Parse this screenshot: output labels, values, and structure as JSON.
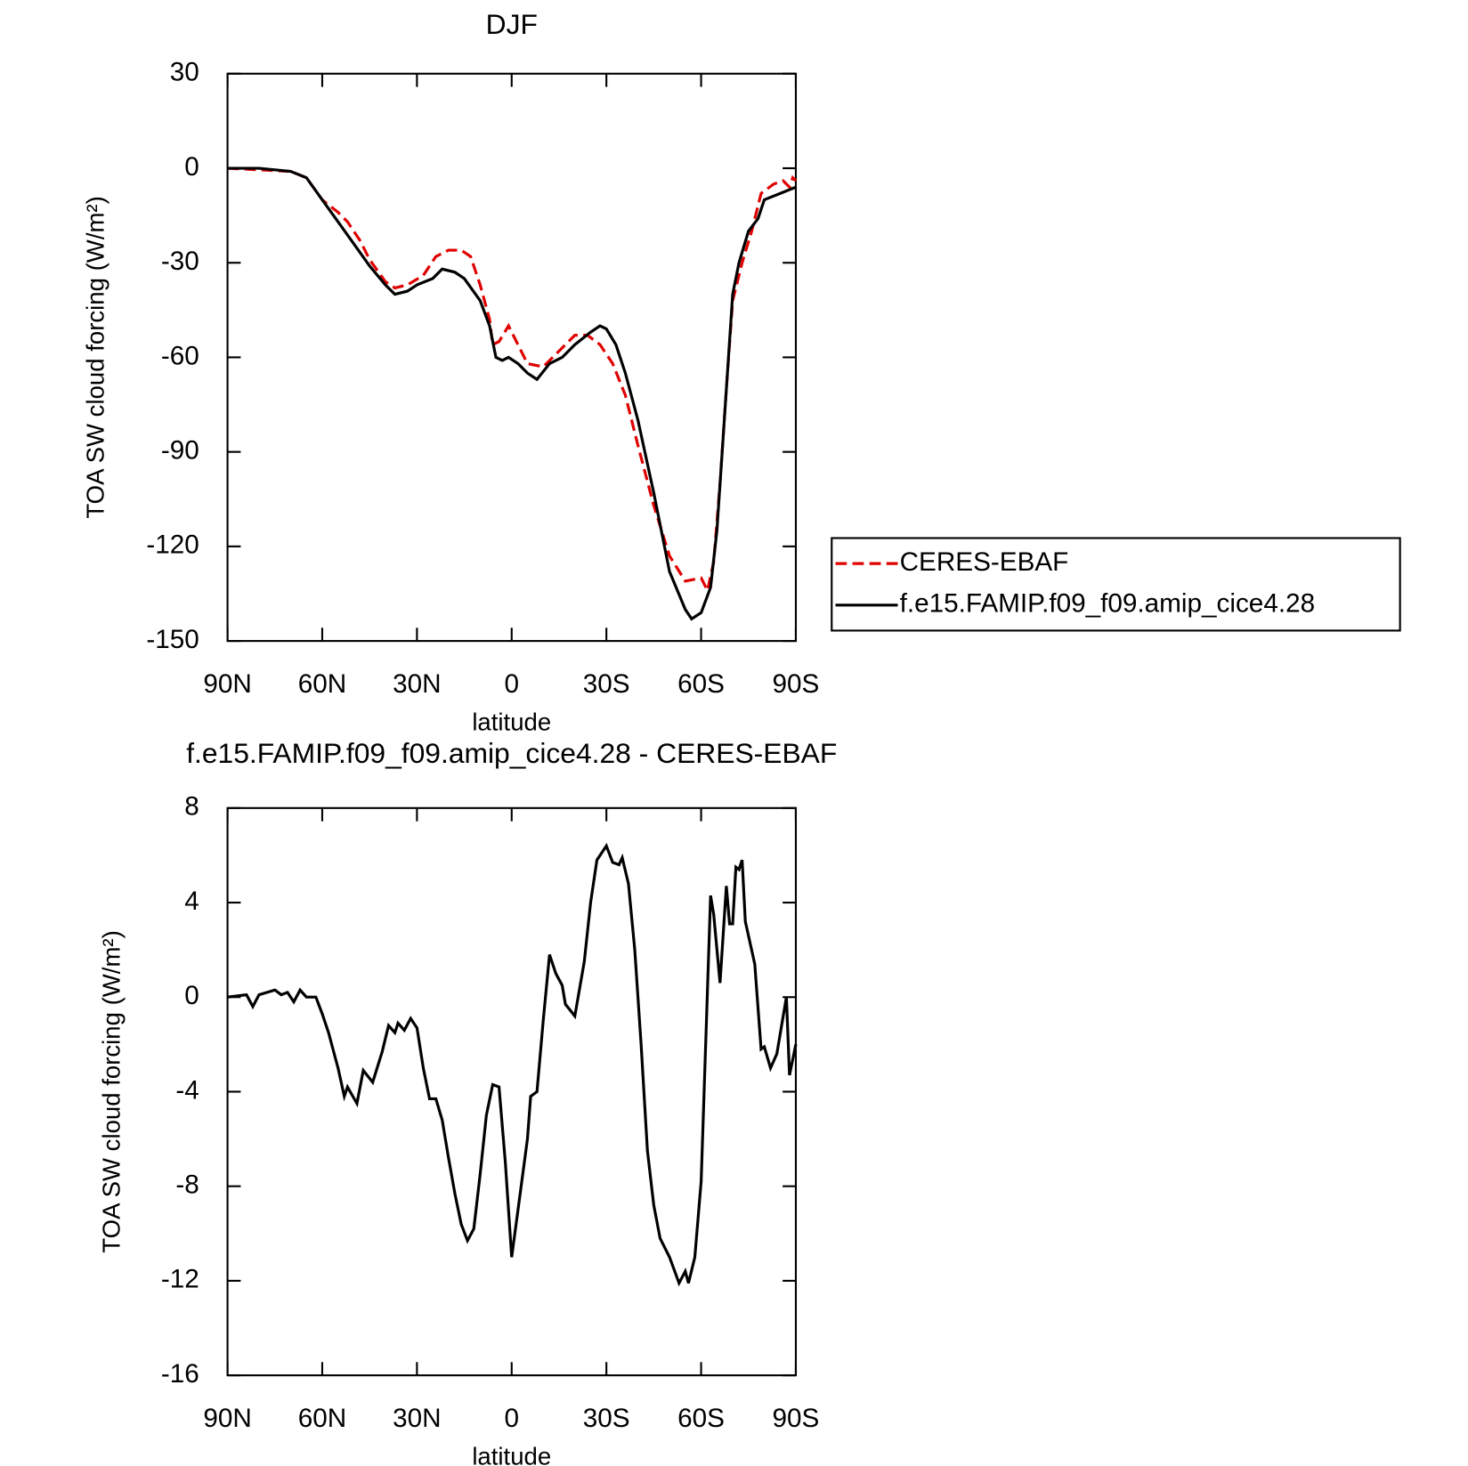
{
  "chart_data": [
    {
      "type": "line",
      "title": "DJF",
      "x_label": "latitude",
      "y_label": "TOA SW cloud forcing (W/m²)",
      "xlim": [
        90,
        -90
      ],
      "xticks": [
        {
          "value": 90,
          "label": "90N"
        },
        {
          "value": 60,
          "label": "60N"
        },
        {
          "value": 30,
          "label": "30N"
        },
        0,
        {
          "value": -30,
          "label": "30S"
        },
        {
          "value": -60,
          "label": "60S"
        },
        {
          "value": -90,
          "label": "90S"
        }
      ],
      "ylim": [
        -150,
        30
      ],
      "yticks": [
        -150,
        -120,
        -90,
        -60,
        -30,
        0,
        30
      ],
      "legend": "right",
      "series": [
        {
          "name": "CERES-EBAF",
          "color": "#e00000",
          "style": "dashed",
          "x": [
            90,
            70,
            65,
            60,
            55,
            52,
            48,
            45,
            40,
            37,
            33,
            28,
            24,
            20,
            16,
            13,
            10,
            7,
            6,
            4,
            1,
            -2,
            -5,
            -10,
            -15,
            -20,
            -24,
            -28,
            -32,
            -36,
            -40,
            -45,
            -50,
            -55,
            -60,
            -62,
            -64,
            -66,
            -68,
            -70,
            -73,
            -76,
            -79,
            -83,
            -86,
            -88,
            -89,
            -90
          ],
          "values": [
            0,
            -1,
            -3,
            -10,
            -14,
            -17,
            -23,
            -29,
            -36,
            -38,
            -37,
            -34,
            -28,
            -26,
            -26,
            -28,
            -37,
            -48,
            -56,
            -55,
            -50,
            -56,
            -62,
            -63,
            -58,
            -53,
            -53,
            -56,
            -62,
            -72,
            -88,
            -107,
            -123,
            -131,
            -130,
            -134,
            -125,
            -100,
            -70,
            -42,
            -30,
            -20,
            -8,
            -5,
            -4,
            -6,
            -3,
            -4
          ]
        },
        {
          "name": "f.e15.FAMIP.f09_f09.amip_cice4.28",
          "color": "#000000",
          "style": "solid",
          "x": [
            90,
            80,
            70,
            65,
            60,
            55,
            50,
            45,
            40,
            37,
            33,
            30,
            25,
            22,
            18,
            15,
            10,
            7,
            5,
            3,
            1,
            -2,
            -5,
            -8,
            -12,
            -16,
            -20,
            -25,
            -28,
            -30,
            -33,
            -36,
            -40,
            -45,
            -50,
            -55,
            -57,
            -60,
            -63,
            -65,
            -67,
            -70,
            -72,
            -75,
            -78,
            -80,
            -85,
            -90
          ],
          "values": [
            0,
            0,
            -1,
            -3,
            -10,
            -17,
            -24,
            -31,
            -37,
            -40,
            -39,
            -37,
            -35,
            -32,
            -33,
            -35,
            -42,
            -50,
            -60,
            -61,
            -60,
            -62,
            -65,
            -67,
            -62,
            -60,
            -56,
            -52,
            -50,
            -51,
            -56,
            -65,
            -80,
            -103,
            -128,
            -140,
            -143,
            -141,
            -133,
            -115,
            -85,
            -40,
            -30,
            -20,
            -16,
            -10,
            -8,
            -6
          ]
        }
      ]
    },
    {
      "type": "line",
      "title": "f.e15.FAMIP.f09_f09.amip_cice4.28 - CERES-EBAF",
      "x_label": "latitude",
      "y_label": "TOA SW cloud forcing (W/m²)",
      "xlim": [
        90,
        -90
      ],
      "xticks": [
        {
          "value": 90,
          "label": "90N"
        },
        {
          "value": 60,
          "label": "60N"
        },
        {
          "value": 30,
          "label": "30N"
        },
        0,
        {
          "value": -30,
          "label": "30S"
        },
        {
          "value": -60,
          "label": "60S"
        },
        {
          "value": -90,
          "label": "90S"
        }
      ],
      "ylim": [
        -16,
        8
      ],
      "yticks": [
        -16,
        -12,
        -8,
        -4,
        0,
        4,
        8
      ],
      "series": [
        {
          "color": "#000000",
          "style": "solid",
          "x": [
            90,
            84,
            82,
            80,
            75,
            73,
            71,
            69,
            67,
            65,
            62,
            60,
            58,
            55,
            53,
            52,
            49,
            47,
            44,
            41,
            39,
            37,
            36,
            34,
            32,
            30,
            28,
            26,
            24,
            22,
            20,
            18,
            16,
            14,
            12,
            10,
            8,
            6,
            4,
            2,
            0,
            -2,
            -5,
            -6,
            -8,
            -10,
            -12,
            -14,
            -16,
            -17,
            -20,
            -23,
            -25,
            -27,
            -30,
            -32,
            -34,
            -35,
            -37,
            -39,
            -41,
            -43,
            -45,
            -47,
            -50,
            -53,
            -55,
            -56,
            -58,
            -60,
            -63,
            -64,
            -66,
            -68,
            -69,
            -70,
            -71,
            -72,
            -73,
            -74,
            -77,
            -79,
            -80,
            -82,
            -84,
            -87,
            -88,
            -90
          ],
          "values": [
            0,
            0.1,
            -0.4,
            0.1,
            0.3,
            0.1,
            0.2,
            -0.2,
            0.3,
            0,
            0,
            -0.7,
            -1.5,
            -3,
            -4.2,
            -3.8,
            -4.5,
            -3.1,
            -3.6,
            -2.3,
            -1.2,
            -1.5,
            -1.1,
            -1.4,
            -0.9,
            -1.3,
            -3,
            -4.3,
            -4.3,
            -5.2,
            -6.8,
            -8.3,
            -9.6,
            -10.3,
            -9.8,
            -7.5,
            -5,
            -3.7,
            -3.8,
            -7,
            -11,
            -9,
            -6,
            -4.2,
            -4,
            -1,
            1.8,
            1,
            0.5,
            -0.3,
            -0.8,
            1.5,
            4,
            5.8,
            6.4,
            5.7,
            5.6,
            5.9,
            4.8,
            2,
            -2,
            -6.5,
            -8.8,
            -10.2,
            -11,
            -12.1,
            -11.6,
            -12.1,
            -11,
            -7.8,
            4.3,
            3.5,
            0.6,
            4.7,
            3.1,
            3.1,
            5.5,
            5.4,
            5.8,
            3.2,
            1.4,
            -2.2,
            -2.1,
            -3,
            -2.4,
            0,
            -3.3,
            -2
          ]
        }
      ]
    }
  ]
}
